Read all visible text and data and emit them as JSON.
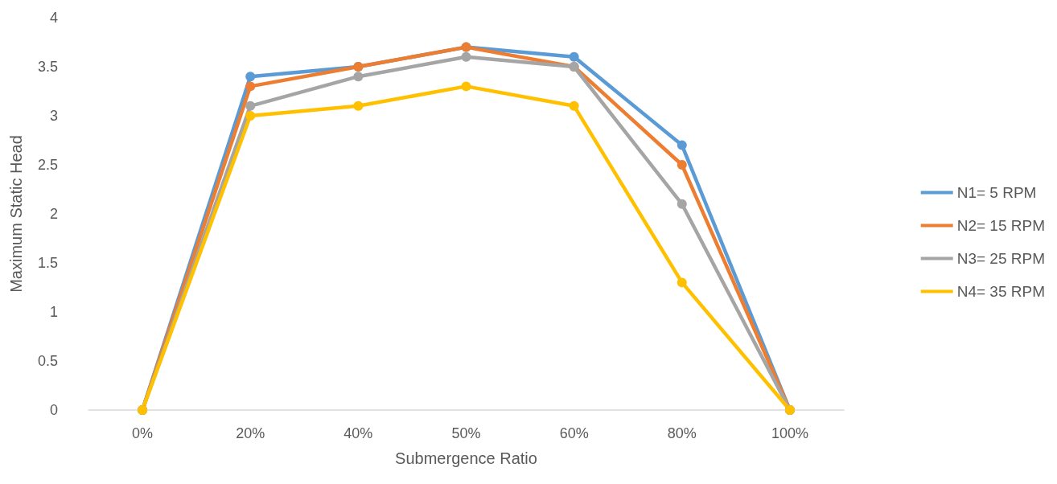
{
  "chart_data": {
    "type": "line",
    "xlabel": "Submergence Ratio",
    "ylabel": "Maximum Static Head",
    "categories": [
      "0%",
      "20%",
      "40%",
      "50%",
      "60%",
      "80%",
      "100%"
    ],
    "series": [
      {
        "name": "N1= 5 RPM",
        "color": "#5b9bd5",
        "values": [
          0,
          3.4,
          3.5,
          3.7,
          3.6,
          2.7,
          0
        ]
      },
      {
        "name": "N2= 15 RPM",
        "color": "#ed7d31",
        "values": [
          0,
          3.3,
          3.5,
          3.7,
          3.5,
          2.5,
          0
        ]
      },
      {
        "name": "N3= 25 RPM",
        "color": "#a5a5a5",
        "values": [
          0,
          3.1,
          3.4,
          3.6,
          3.5,
          2.1,
          0
        ]
      },
      {
        "name": "N4= 35 RPM",
        "color": "#ffc000",
        "values": [
          0,
          3.0,
          3.1,
          3.3,
          3.1,
          1.3,
          0
        ]
      }
    ],
    "ylim": [
      0,
      4
    ],
    "yticks": [
      0,
      0.5,
      1,
      1.5,
      2,
      2.5,
      3,
      3.5,
      4
    ],
    "grid": false,
    "legend": "right",
    "marker": "circle",
    "line_style": "solid"
  }
}
